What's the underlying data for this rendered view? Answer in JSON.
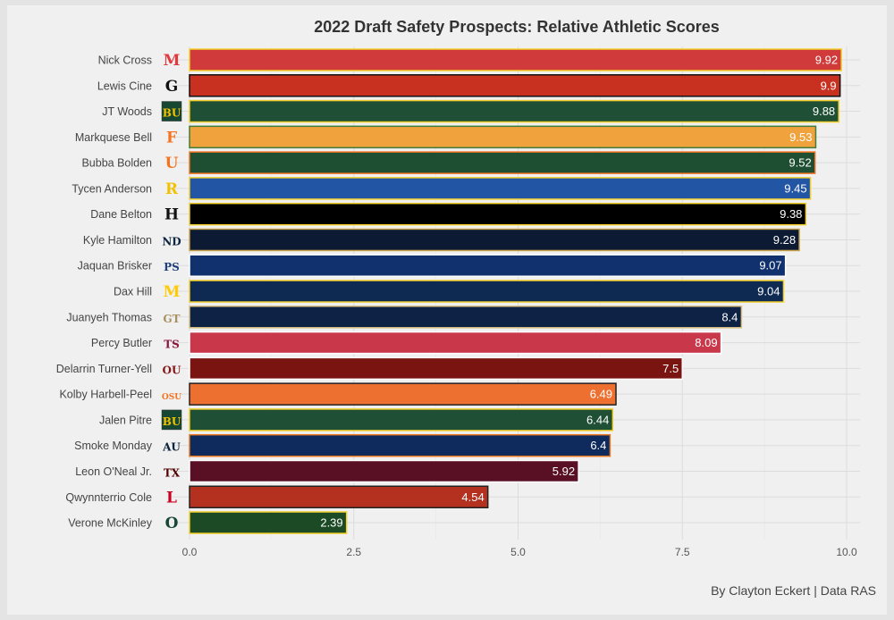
{
  "chart_data": {
    "type": "bar",
    "orientation": "horizontal",
    "title": "2022 Draft Safety Prospects: Relative Athletic Scores",
    "caption": "By Clayton Eckert | Data RAS",
    "xlim": [
      0,
      10
    ],
    "xticks": [
      "0.0",
      "2.5",
      "5.0",
      "7.5",
      "10.0"
    ],
    "grid": true,
    "categories": [
      "Nick Cross",
      "Lewis Cine",
      "JT Woods",
      "Markquese Bell",
      "Bubba Bolden",
      "Tycen Anderson",
      "Dane Belton",
      "Kyle Hamilton",
      "Jaquan Brisker",
      "Dax Hill",
      "Juanyeh Thomas",
      "Percy Butler",
      "Delarrin Turner-Yell",
      "Kolby Harbell-Peel",
      "Jalen Pitre",
      "Smoke Monday",
      "Leon O'Neal Jr.",
      "Qwynnterrio Cole",
      "Verone McKinley"
    ],
    "values": [
      9.92,
      9.9,
      9.88,
      9.53,
      9.52,
      9.45,
      9.38,
      9.28,
      9.07,
      9.04,
      8.4,
      8.09,
      7.5,
      6.49,
      6.44,
      6.4,
      5.92,
      4.54,
      2.39
    ],
    "labels": [
      "9.92",
      "9.9",
      "9.88",
      "9.53",
      "9.52",
      "9.45",
      "9.38",
      "9.28",
      "9.07",
      "9.04",
      "8.4",
      "8.09",
      "7.5",
      "6.49",
      "6.44",
      "6.4",
      "5.92",
      "4.54",
      "2.39"
    ],
    "fill_colors": [
      "#d03a3a",
      "#c8311f",
      "#1f4f35",
      "#f0a23c",
      "#1e4f32",
      "#2255a4",
      "#000000",
      "#0c1a33",
      "#10306e",
      "#0e2a52",
      "#0d2244",
      "#c8384a",
      "#7a1410",
      "#ee7030",
      "#1f4f35",
      "#0f2a5c",
      "#5a1024",
      "#b4311f",
      "#1c4a25"
    ],
    "outline_colors": [
      "#f2cf2a",
      "#111111",
      "#f2cf2a",
      "#3f7d3a",
      "#f47321",
      "#f2cf2a",
      "#f2cf2a",
      "#c9a44a",
      "#ffffff",
      "#f2cf2a",
      "#d8c080",
      "#ffffff",
      "#ffffff",
      "#222222",
      "#f2cf2a",
      "#e87722",
      "#ffffff",
      "#222222",
      "#f2cf2a"
    ],
    "logo_icons": [
      "maryland-logo",
      "georgia-logo",
      "baylor-logo",
      "famu-logo",
      "miami-logo",
      "toledo-logo",
      "iowa-logo",
      "notre-dame-logo",
      "penn-state-logo",
      "michigan-logo",
      "georgia-tech-logo",
      "texas-state-logo",
      "oklahoma-logo",
      "oklahoma-state-logo",
      "baylor-logo",
      "auburn-logo",
      "texas-am-logo",
      "louisville-logo",
      "oregon-logo"
    ],
    "logo_glyphs": [
      "M",
      "G",
      "BU",
      "F",
      "U",
      "R",
      "H",
      "ND",
      "PS",
      "M",
      "GT",
      "TS",
      "OU",
      "OSU",
      "BU",
      "AU",
      "TX",
      "L",
      "O"
    ],
    "logo_colors": [
      "#e03a3e",
      "#111111",
      "#f2c200",
      "#f47321",
      "#f47321",
      "#f2c200",
      "#111111",
      "#0c2340",
      "#1e407c",
      "#ffcb05",
      "#a99060",
      "#8a1538",
      "#841617",
      "#f47321",
      "#f2c200",
      "#0c2340",
      "#500000",
      "#c9001f",
      "#154733"
    ],
    "logo_bg": [
      "none",
      "none",
      "#154733",
      "none",
      "none",
      "none",
      "none",
      "none",
      "none",
      "none",
      "none",
      "none",
      "none",
      "none",
      "#154733",
      "none",
      "none",
      "none",
      "none"
    ]
  }
}
